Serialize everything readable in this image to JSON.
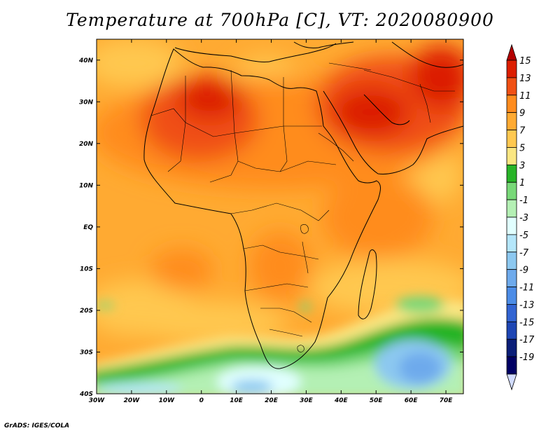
{
  "title": "Temperature at 700hPa [C], VT: 2020080900",
  "footer": "GrADS: IGES/COLA",
  "map": {
    "lat_labels": [
      "40N",
      "30N",
      "20N",
      "10N",
      "EQ",
      "10S",
      "20S",
      "30S",
      "40S"
    ],
    "lon_labels": [
      "30W",
      "20W",
      "10W",
      "0",
      "10E",
      "20E",
      "30E",
      "40E",
      "50E",
      "60E",
      "70E"
    ],
    "lat_range": [
      -40,
      45
    ],
    "lon_range": [
      -30,
      75
    ]
  },
  "colorbar": {
    "labels": [
      "15",
      "13",
      "11",
      "9",
      "7",
      "5",
      "3",
      "1",
      "-1",
      "-3",
      "-5",
      "-7",
      "-9",
      "-11",
      "-13",
      "-15",
      "-17",
      "-19"
    ],
    "colors": [
      "#b40000",
      "#dc1e00",
      "#f05014",
      "#ff8c1e",
      "#ffaa32",
      "#ffc850",
      "#fae682",
      "#28b428",
      "#78d878",
      "#b4f0b4",
      "#e1ffff",
      "#b4e6fa",
      "#8cc8f0",
      "#6eaaec",
      "#4c8ce6",
      "#3264d2",
      "#1e46b4",
      "#0a1e78",
      "#000064",
      "#d2dcff"
    ]
  }
}
